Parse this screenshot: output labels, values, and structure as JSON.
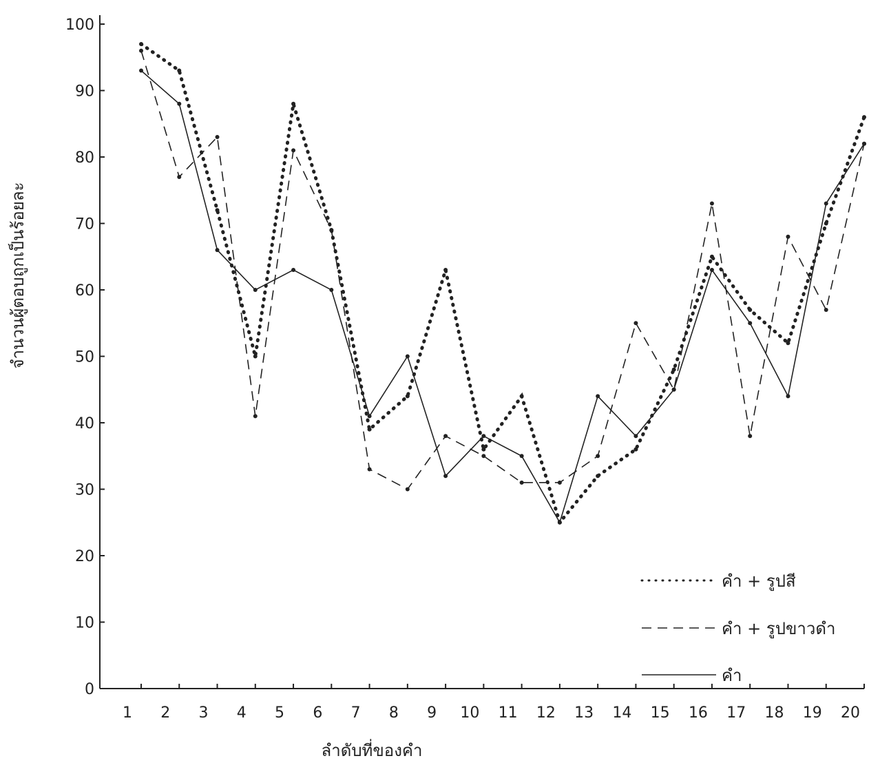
{
  "chart_data": {
    "type": "line",
    "xlabel": "ลำดับที่ของคำ",
    "ylabel": "จำนวนผู้ตอบถูกเป็นร้อยละ",
    "x": [
      1,
      2,
      3,
      4,
      5,
      6,
      7,
      8,
      9,
      10,
      11,
      12,
      13,
      14,
      15,
      16,
      17,
      18,
      19,
      20
    ],
    "x_ticks": [
      "1",
      "2",
      "3",
      "4",
      "5",
      "6",
      "7",
      "8",
      "9",
      "10",
      "11",
      "12",
      "13",
      "14",
      "15",
      "16",
      "17",
      "18",
      "19",
      "20"
    ],
    "y_ticks": [
      "0",
      "10",
      "20",
      "30",
      "40",
      "50",
      "60",
      "70",
      "80",
      "90",
      "100"
    ],
    "ylim": [
      0,
      100
    ],
    "grid": false,
    "legend_position": "bottom-right",
    "series": [
      {
        "name": "คำ + รูปสี",
        "style": "dotted",
        "values": [
          97,
          93,
          72,
          50,
          88,
          69,
          39,
          44,
          63,
          36,
          44,
          25,
          32,
          36,
          48,
          65,
          57,
          52,
          70,
          86
        ]
      },
      {
        "name": "คำ + รูปขาวดำ",
        "style": "dashed",
        "values": [
          96,
          77,
          83,
          41,
          81,
          69,
          33,
          30,
          38,
          35,
          31,
          31,
          35,
          55,
          45,
          73,
          38,
          68,
          57,
          82
        ]
      },
      {
        "name": "คำ",
        "style": "solid",
        "values": [
          93,
          88,
          66,
          60,
          63,
          60,
          41,
          50,
          32,
          38,
          35,
          25,
          44,
          38,
          45,
          63,
          55,
          44,
          73,
          82
        ]
      }
    ]
  }
}
